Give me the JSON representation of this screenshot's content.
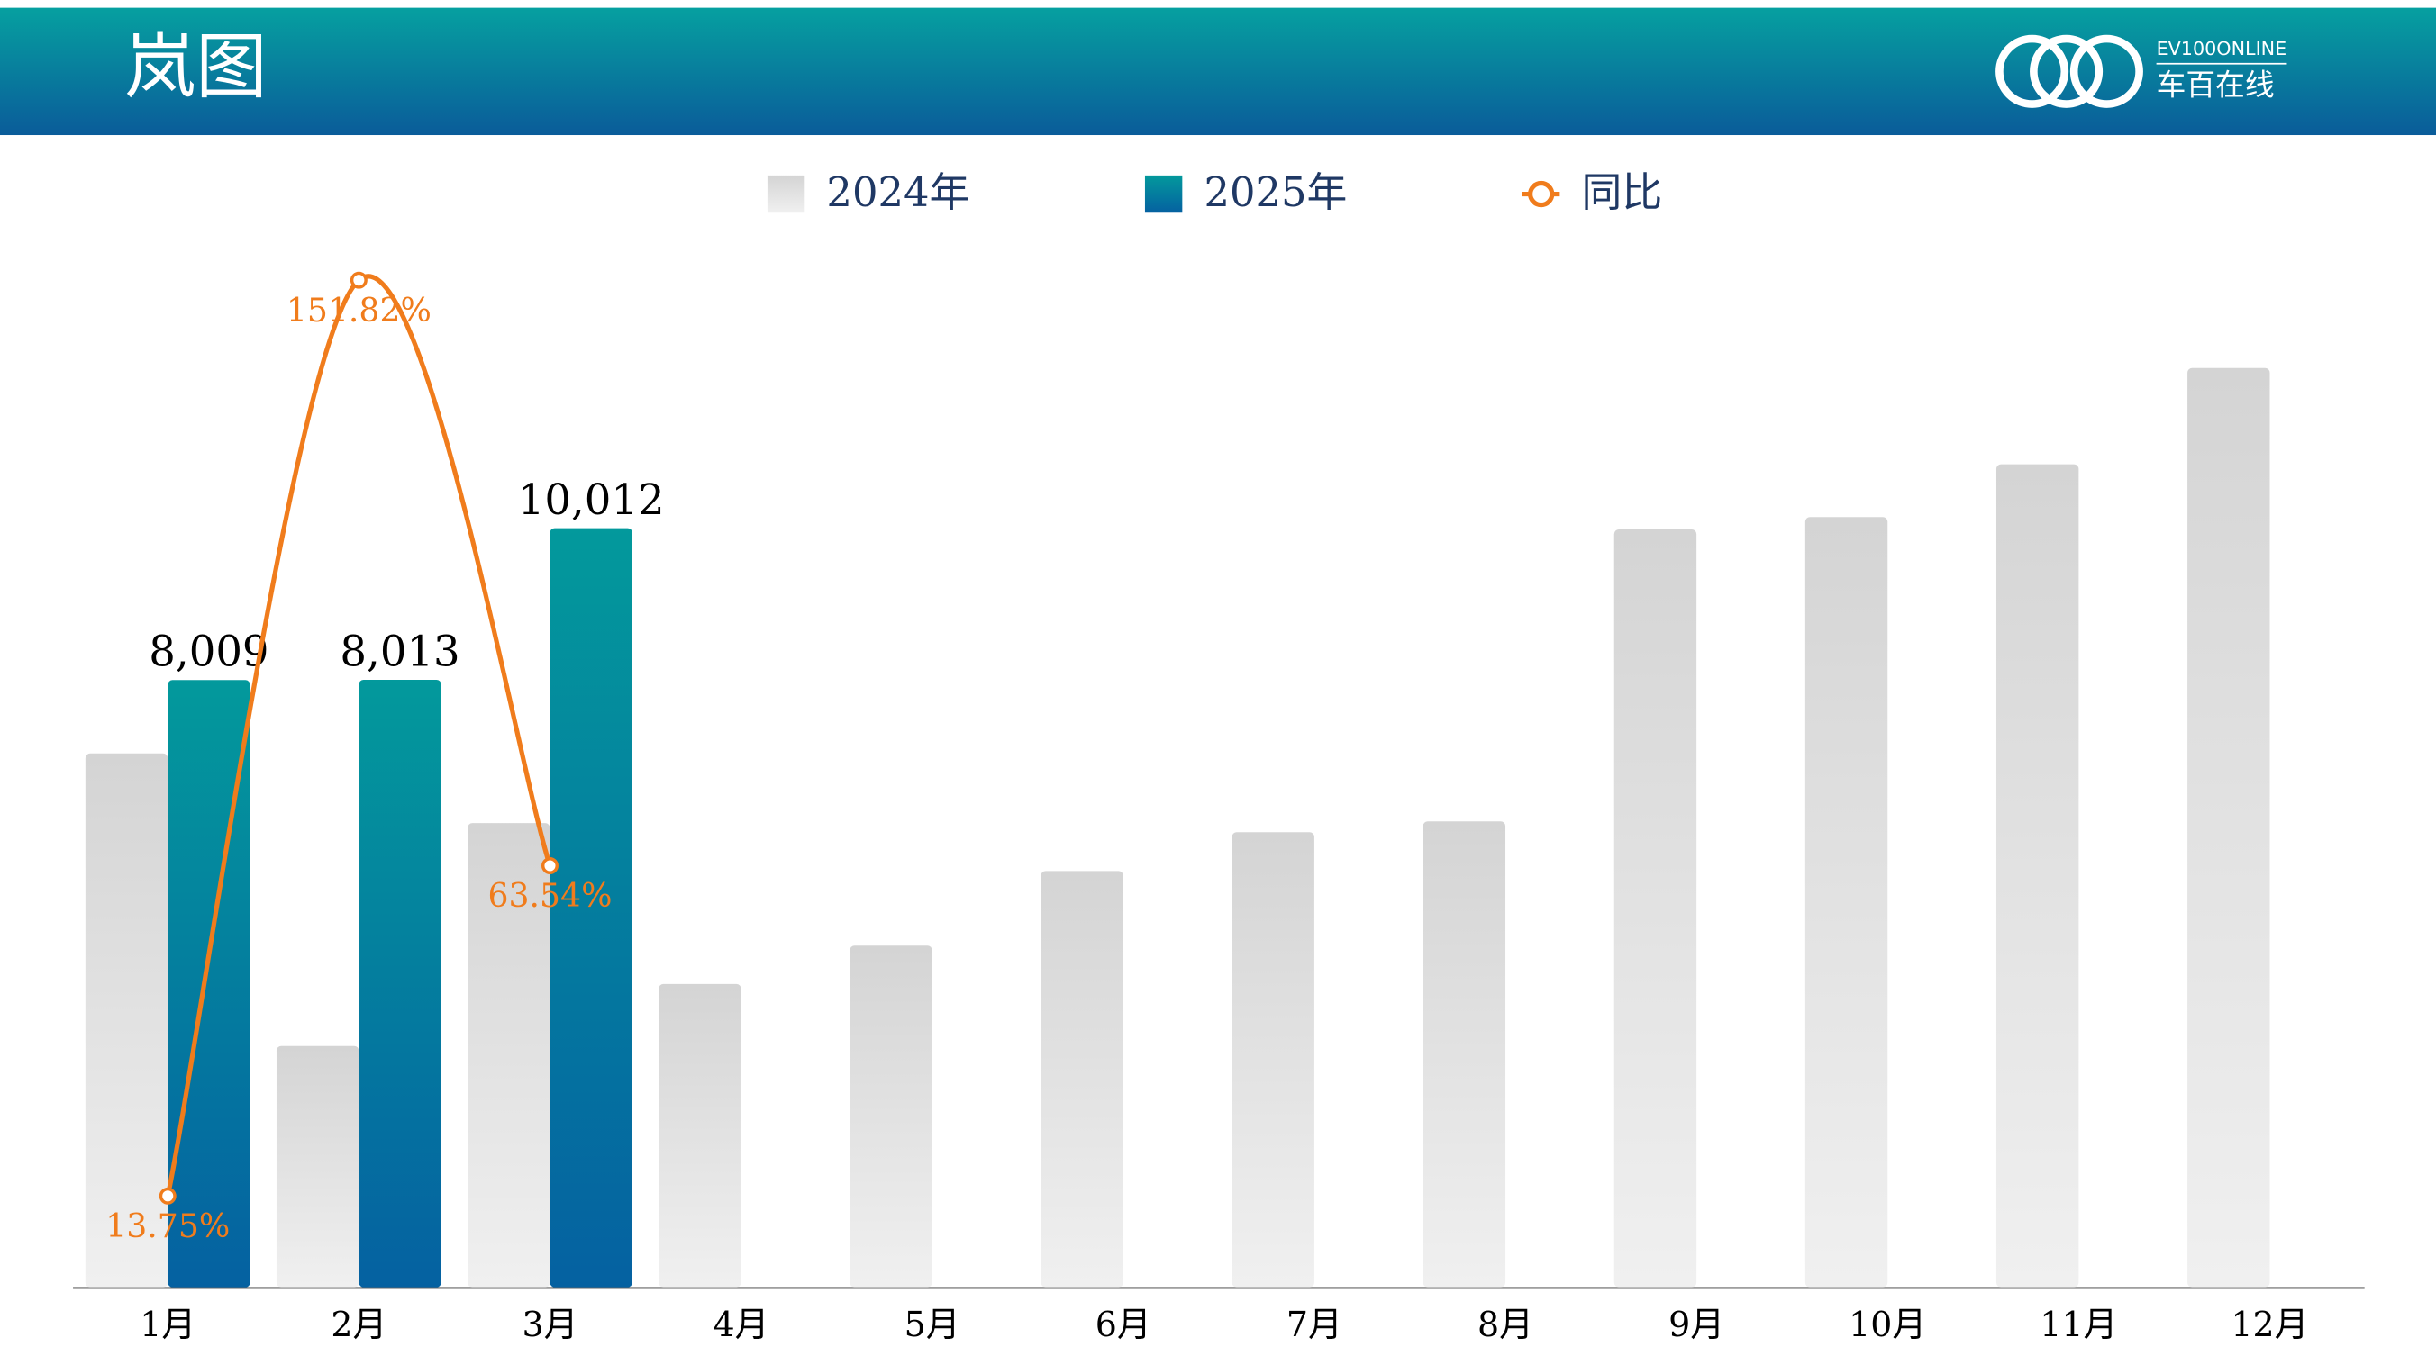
{
  "chart_data": {
    "type": "bar",
    "title": "岚图",
    "logo": {
      "brand": "EV100ONLINE",
      "name": "车百在线"
    },
    "categories": [
      "1月",
      "2月",
      "3月",
      "4月",
      "5月",
      "6月",
      "7月",
      "8月",
      "9月",
      "10月",
      "11月",
      "12月"
    ],
    "series": [
      {
        "name": "2024年",
        "color": "#d4d4d4",
        "values": [
          7041,
          3182,
          6122,
          4000,
          4506,
          5490,
          6002,
          6145,
          9996,
          10160,
          10856,
          12126
        ]
      },
      {
        "name": "2025年",
        "color": "#03999c",
        "values": [
          8009,
          8013,
          10012,
          null,
          null,
          null,
          null,
          null,
          null,
          null,
          null,
          null
        ],
        "value_labels": [
          "8,009",
          "8,013",
          "10,012",
          null,
          null,
          null,
          null,
          null,
          null,
          null,
          null,
          null
        ]
      },
      {
        "name": "同比",
        "type": "line",
        "axis": "y2",
        "color": "#f07c1c",
        "values": [
          13.75,
          151.82,
          63.54,
          null,
          null,
          null,
          null,
          null,
          null,
          null,
          null,
          null
        ],
        "value_labels": [
          "13.75%",
          "151.82%",
          "63.54%",
          null,
          null,
          null,
          null,
          null,
          null,
          null,
          null,
          null
        ]
      }
    ],
    "ylim": [
      0,
      14000
    ],
    "y2lim": [
      0,
      160
    ],
    "grid": false,
    "legend": "top"
  }
}
